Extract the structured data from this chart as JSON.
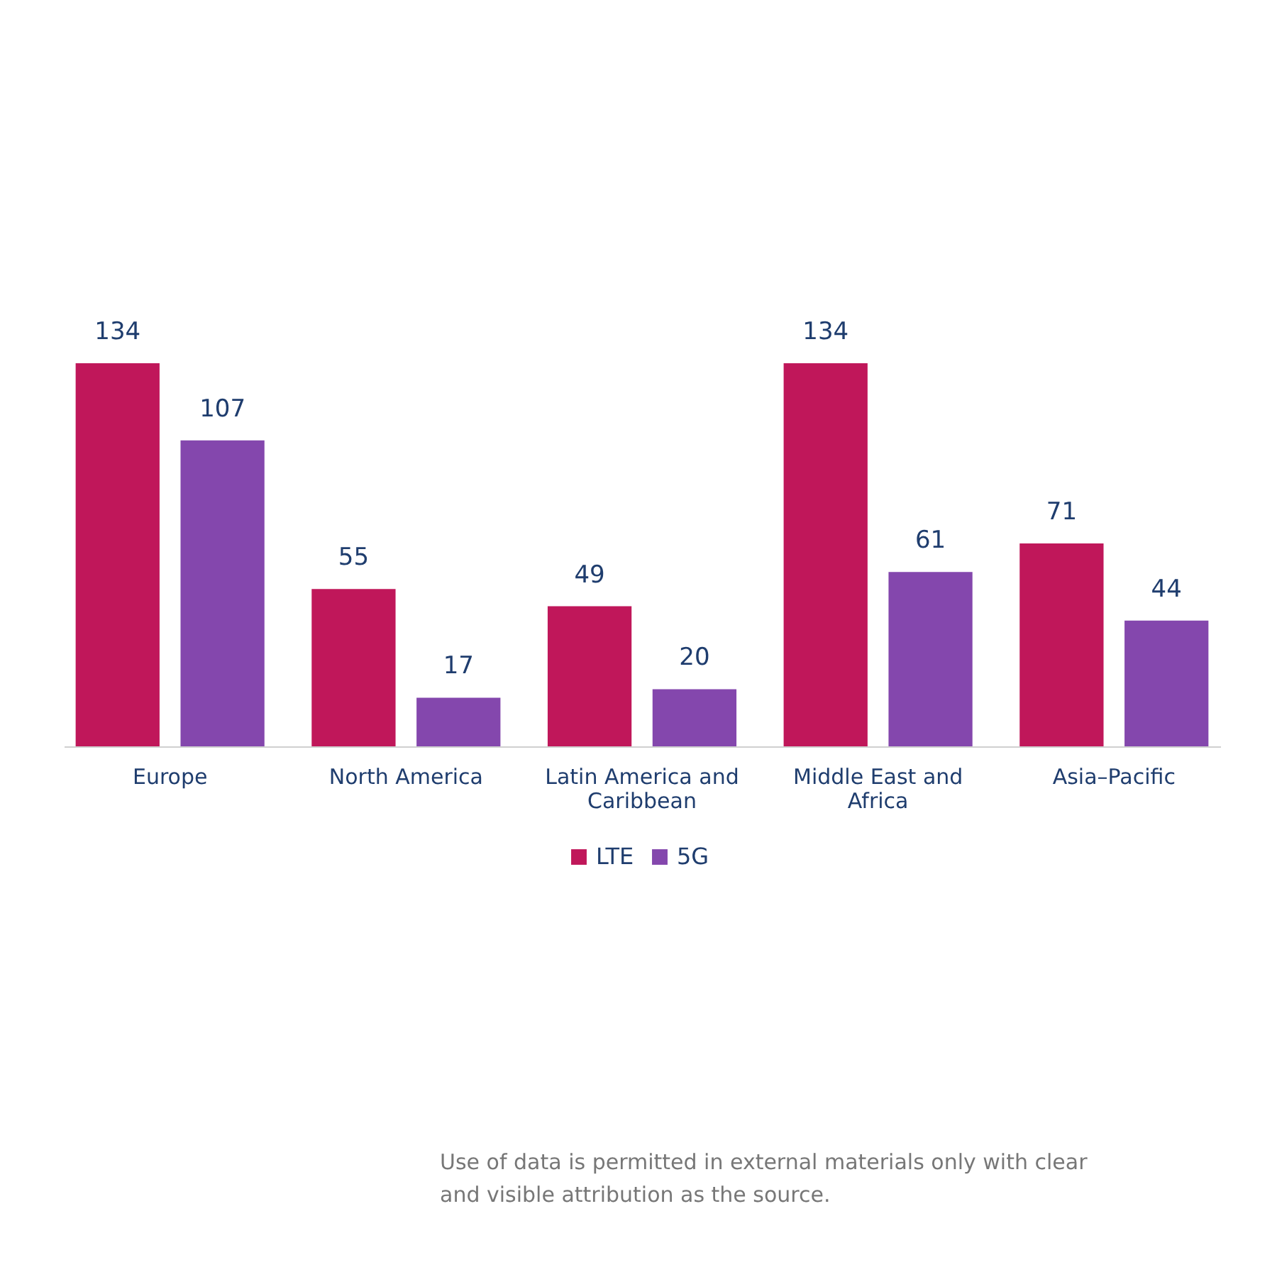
{
  "chart_data": {
    "type": "bar",
    "categories": [
      "Europe",
      "North America",
      "Latin America and Caribbean",
      "Middle East and Africa",
      "Asia–Pacific"
    ],
    "series": [
      {
        "name": "LTE",
        "color": "#c0175a",
        "values": [
          134,
          55,
          49,
          134,
          71
        ]
      },
      {
        "name": "5G",
        "color": "#8447ad",
        "values": [
          107,
          17,
          20,
          61,
          44
        ]
      }
    ],
    "data_labels": true,
    "legend": "bottom",
    "annotations": [
      "Use of data is permitted in external materials only with clear and visible attribution as the source."
    ]
  }
}
